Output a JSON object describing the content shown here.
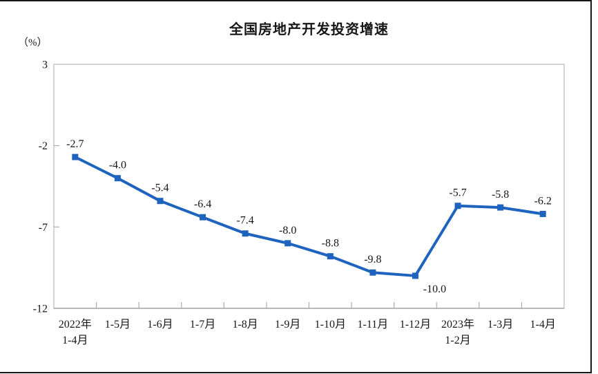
{
  "frame": {
    "border_color": "#161616"
  },
  "chart_data": {
    "type": "line",
    "title": "全国房地产开发投资增速",
    "unit_label": "（%）",
    "categories": [
      [
        "2022年",
        "1-4月"
      ],
      [
        "1-5月"
      ],
      [
        "1-6月"
      ],
      [
        "1-7月"
      ],
      [
        "1-8月"
      ],
      [
        "1-9月"
      ],
      [
        "1-10月"
      ],
      [
        "1-11月"
      ],
      [
        "1-12月"
      ],
      [
        "2023年",
        "1-2月"
      ],
      [
        "1-3月"
      ],
      [
        "1-4月"
      ]
    ],
    "values": [
      -2.7,
      -4.0,
      -5.4,
      -6.4,
      -7.4,
      -8.0,
      -8.8,
      -9.8,
      -10.0,
      -5.7,
      -5.8,
      -6.2
    ],
    "data_labels": [
      "-2.7",
      "-4.0",
      "-5.4",
      "-6.4",
      "-7.4",
      "-8.0",
      "-8.8",
      "-9.8",
      "-10.0",
      "-5.7",
      "-5.8",
      "-6.2"
    ],
    "label_below_index": 8,
    "y_ticks": [
      3,
      -2,
      -7,
      -12
    ],
    "ylim": [
      -12,
      3
    ],
    "grid": false,
    "legend": "none",
    "marker": "square",
    "line_color": "#1E63BE",
    "border_color": "#C6C6C6",
    "axis_color": "#ABABAB",
    "text_color": "#161616"
  }
}
